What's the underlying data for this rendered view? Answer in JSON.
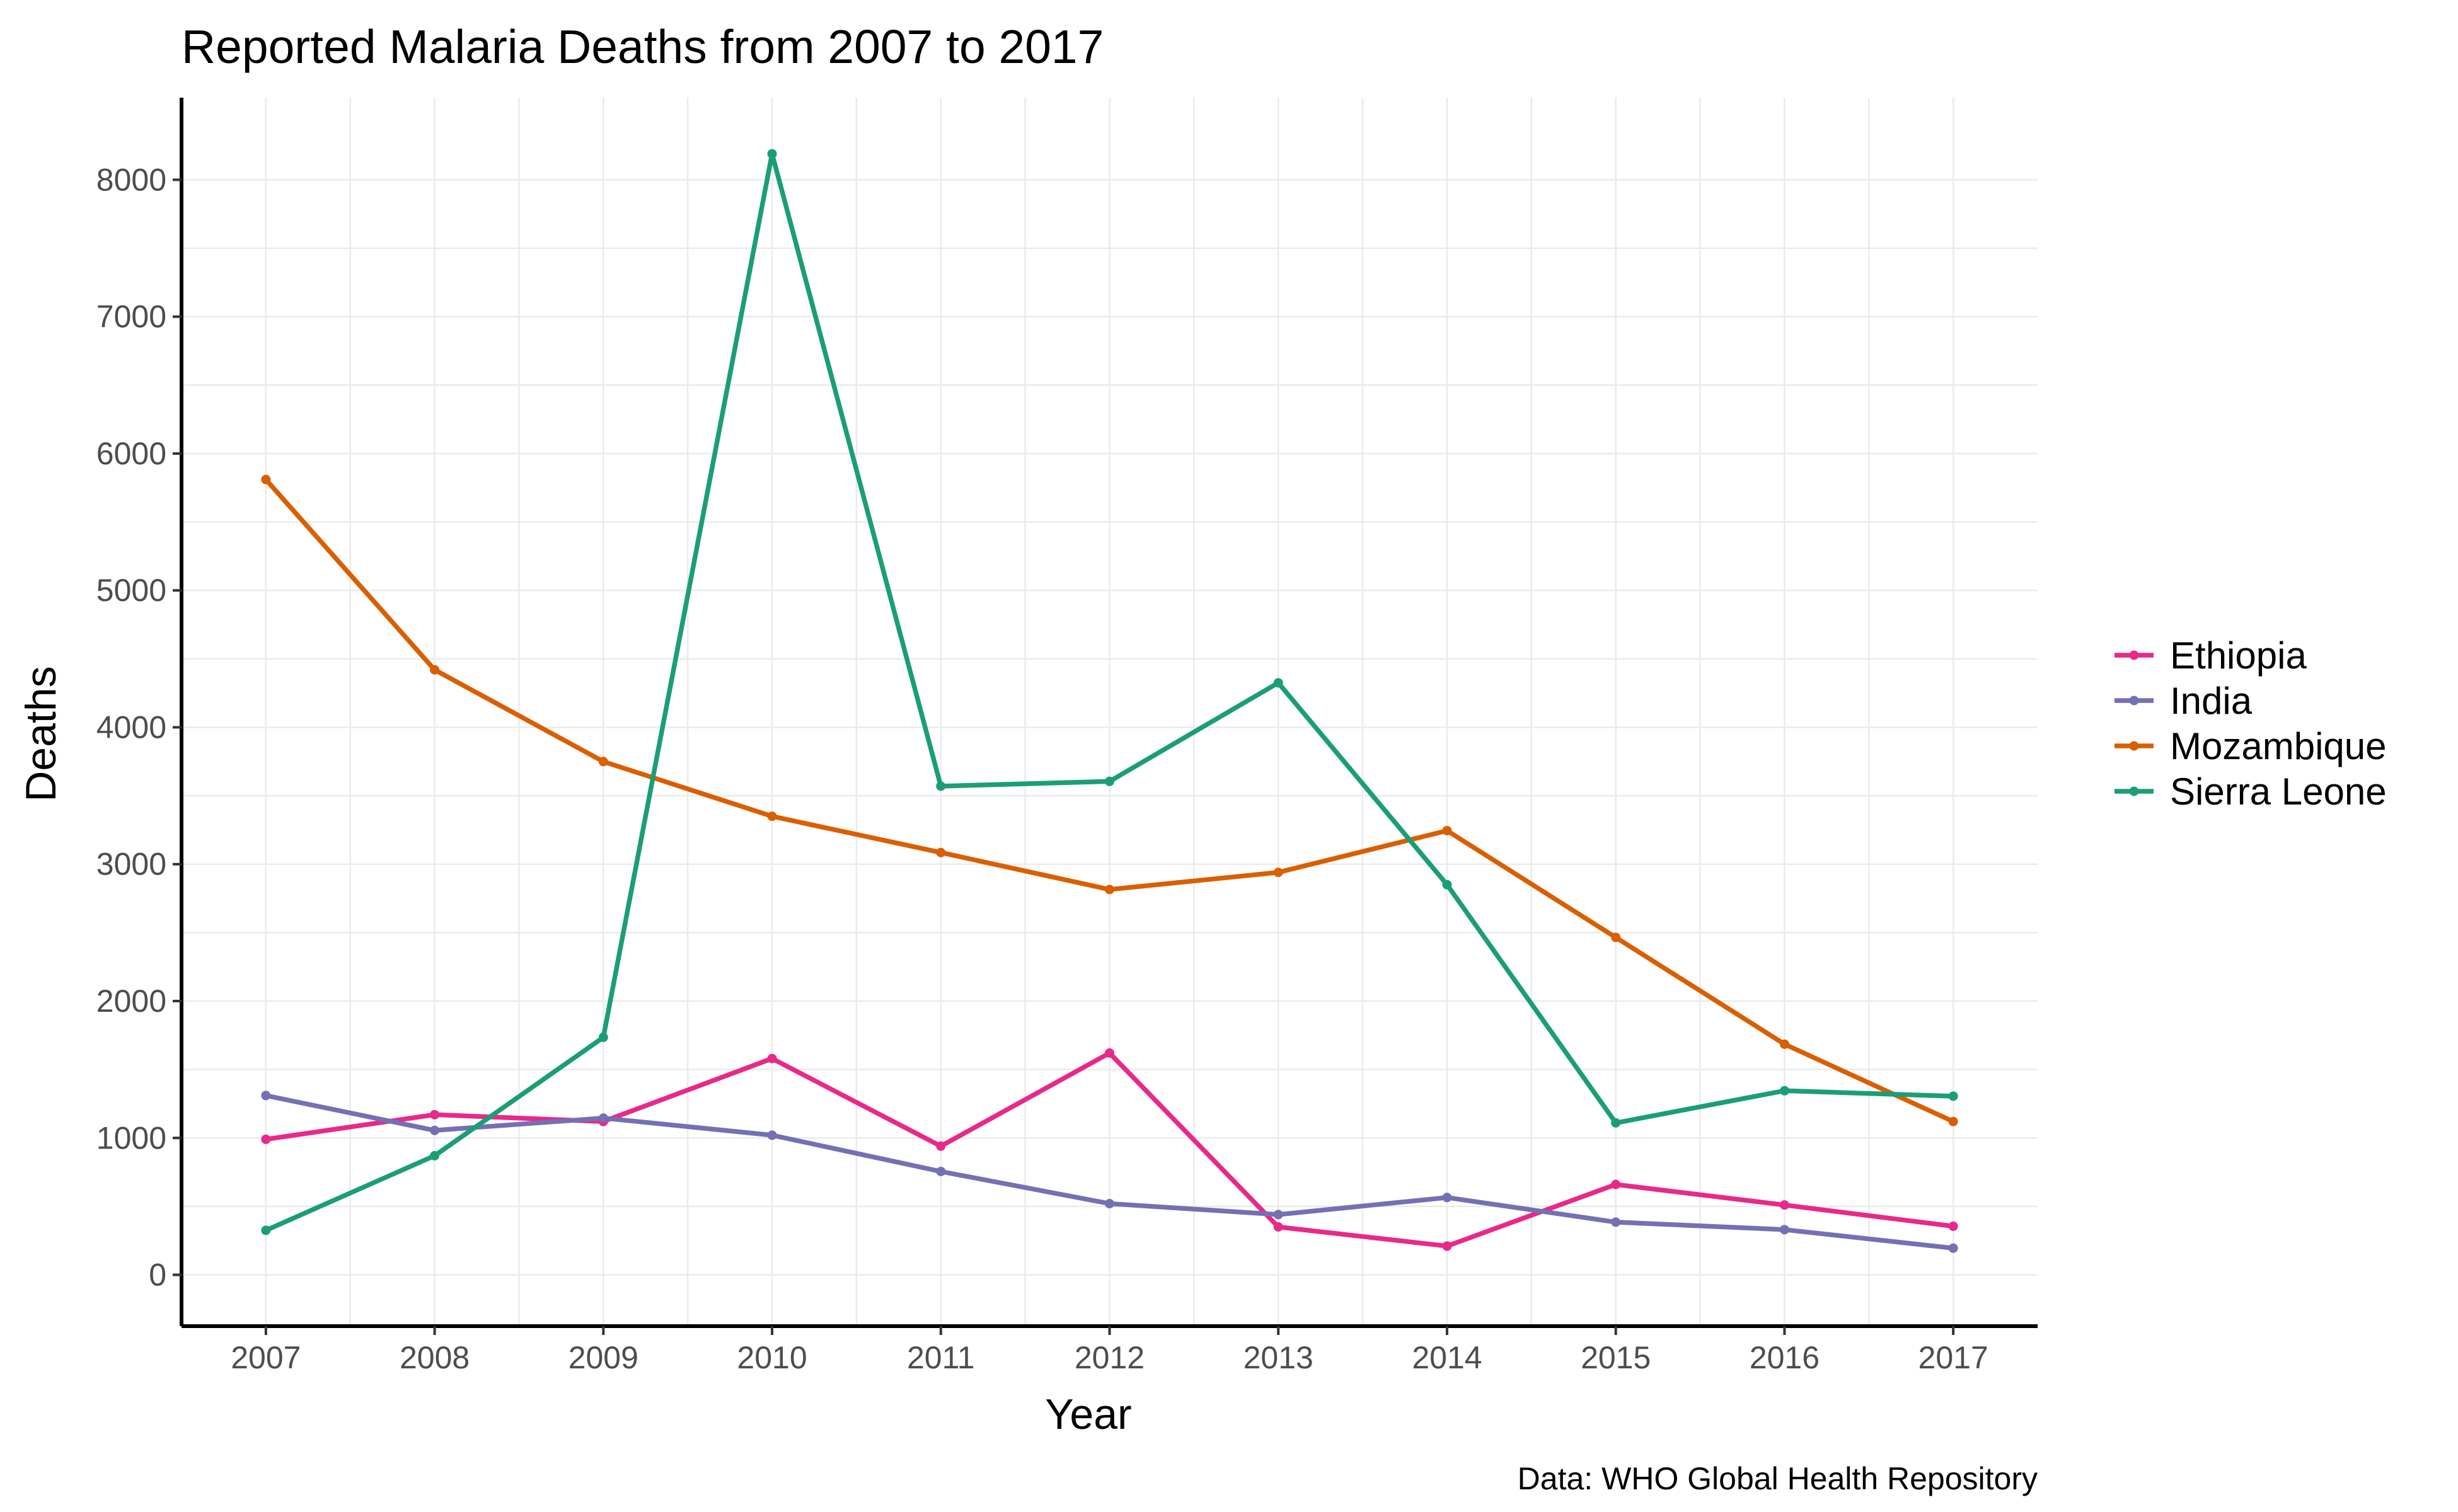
{
  "chart_data": {
    "type": "line",
    "title": "Reported Malaria Deaths from 2007 to 2017",
    "xlabel": "Year",
    "ylabel": "Deaths",
    "caption": "Data: WHO Global Health Repository",
    "x": [
      2007,
      2008,
      2009,
      2010,
      2011,
      2012,
      2013,
      2014,
      2015,
      2016,
      2017
    ],
    "x_tick_labels": [
      "2007",
      "2008",
      "2009",
      "2010",
      "2011",
      "2012",
      "2013",
      "2014",
      "2015",
      "2016",
      "2017"
    ],
    "y_ticks": [
      0,
      1000,
      2000,
      3000,
      4000,
      5000,
      6000,
      7000,
      8000
    ],
    "y_tick_labels": [
      "0",
      "1000",
      "2000",
      "3000",
      "4000",
      "5000",
      "6000",
      "7000",
      "8000"
    ],
    "xlim": [
      2006.5,
      2017.5
    ],
    "ylim": [
      -375,
      8600
    ],
    "grid": true,
    "legend_position": "right",
    "series": [
      {
        "name": "Ethiopia",
        "color": "#e7298a",
        "values": [
          990,
          1170,
          1120,
          1580,
          940,
          1620,
          350,
          210,
          660,
          510,
          355
        ]
      },
      {
        "name": "India",
        "color": "#7570b3",
        "values": [
          1310,
          1055,
          1145,
          1020,
          755,
          520,
          440,
          565,
          385,
          330,
          195
        ]
      },
      {
        "name": "Mozambique",
        "color": "#d95f02",
        "values": [
          5810,
          4420,
          3750,
          3350,
          3085,
          2815,
          2940,
          3245,
          2465,
          1685,
          1120
        ]
      },
      {
        "name": "Sierra Leone",
        "color": "#1b9e77",
        "values": [
          325,
          870,
          1735,
          8190,
          3570,
          3605,
          4325,
          2850,
          1110,
          1345,
          1305
        ]
      }
    ]
  }
}
